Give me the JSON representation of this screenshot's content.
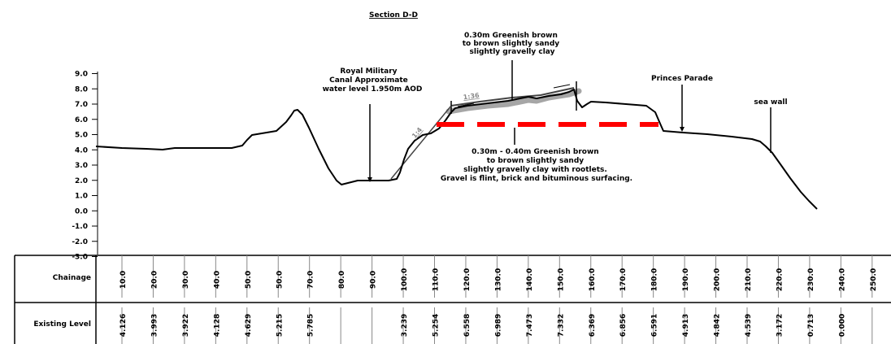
{
  "title": "Section D-D",
  "annotations": {
    "canal": [
      "Royal Military",
      "Canal Approximate",
      "water level 1.950m AOD"
    ],
    "topsoil": [
      "0.30m Greenish brown",
      "to brown slightly sandy",
      "slightly gravelly clay"
    ],
    "subsoil": [
      "0.30m - 0.40m Greenish brown",
      "to brown slightly sandy",
      "slightly gravelly clay with rootlets.",
      "Gravel is flint, brick and bituminous surfacing."
    ],
    "princes_parade": "Princes Parade",
    "sea_wall": "sea wall",
    "slope_upper": "1:36",
    "slope_lower": "1:4"
  },
  "y_axis": {
    "ticks": [
      "9.0",
      "8.0",
      "7.0",
      "6.0",
      "5.0",
      "4.0",
      "3.0",
      "2.0",
      "1.0",
      "0.0",
      "-1.0",
      "-2.0",
      "-3.0"
    ],
    "range": [
      -3.0,
      9.0
    ]
  },
  "table": {
    "chainage_label": "Chainage",
    "level_label": "Existing Level",
    "chainage": [
      "10.0",
      "20.0",
      "30.0",
      "40.0",
      "50.0",
      "50.0",
      "70.0",
      "80.0",
      "90.0",
      "100.0",
      "110.0",
      "120.0",
      "130.0",
      "140.0",
      "150.0",
      "160.0",
      "170.0",
      "180.0",
      "190.0",
      "200.0",
      "210.0",
      "220.0",
      "230.0",
      "240.0",
      "250.0"
    ],
    "levels": [
      "4.126",
      "3.993",
      "3.922",
      "4.128",
      "4.629",
      "5.215",
      "5.785",
      "",
      "",
      "3.239",
      "5.254",
      "6.558",
      "6.989",
      "7.473",
      "7.332",
      "6.369",
      "6.856",
      "6.591",
      "4.913",
      "4.842",
      "4.539",
      "3.172",
      "0.713",
      "0.000",
      ""
    ]
  },
  "colors": {
    "ground": "#000000",
    "topsoil_band": "#a6a6a6",
    "dashed_line": "#ff0000"
  }
}
